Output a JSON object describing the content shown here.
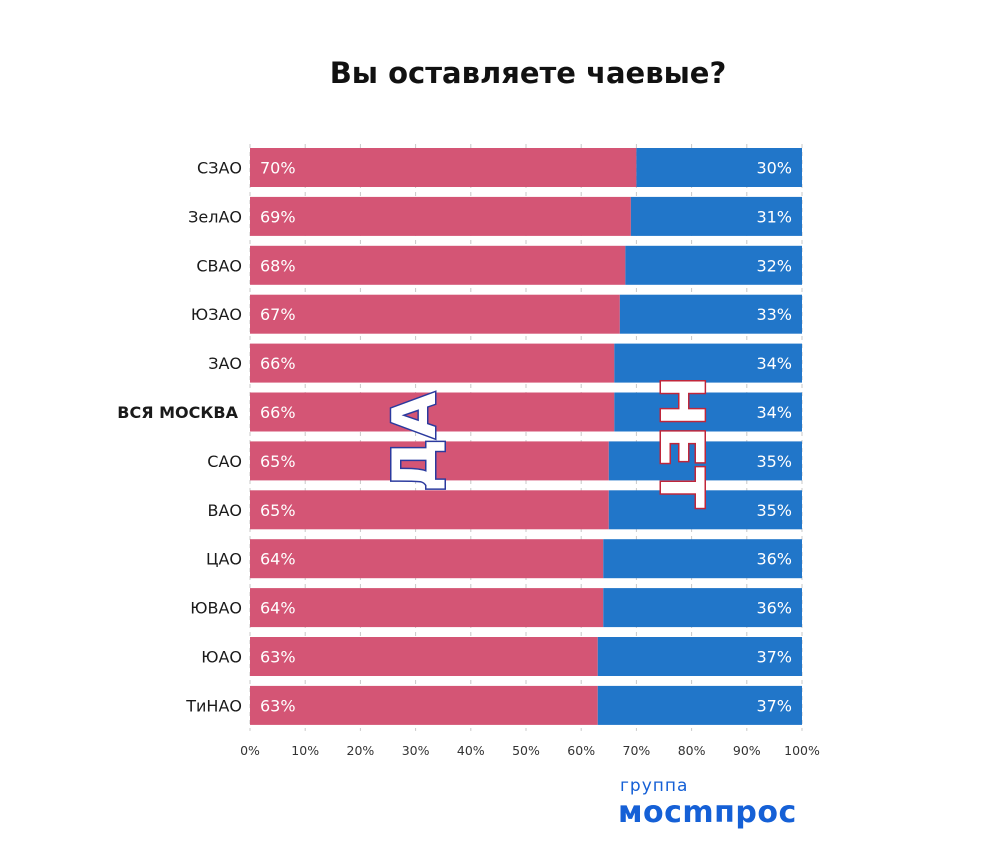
{
  "chart_data": {
    "type": "bar",
    "orientation": "horizontal",
    "stacked": true,
    "title": "Вы оставляете чаевые?",
    "categories": [
      "СЗАО",
      "ЗелАО",
      "СВАО",
      "ЮЗАО",
      "ЗАО",
      "ВСЯ МОСКВА",
      "САО",
      "ВАО",
      "ЦАО",
      "ЮВАО",
      "ЮАО",
      "ТиНАО"
    ],
    "highlight_category": "ВСЯ МОСКВА",
    "series": [
      {
        "name": "ДА",
        "color": "#d45575",
        "values": [
          70,
          69,
          68,
          67,
          66,
          66,
          65,
          65,
          64,
          64,
          63,
          63
        ]
      },
      {
        "name": "НЕТ",
        "color": "#2176c9",
        "values": [
          30,
          31,
          32,
          33,
          34,
          34,
          35,
          35,
          36,
          36,
          37,
          37
        ]
      }
    ],
    "value_suffix": "%",
    "xlim": [
      0,
      100
    ],
    "xticks": [
      "0%",
      "10%",
      "20%",
      "30%",
      "40%",
      "50%",
      "60%",
      "70%",
      "80%",
      "90%",
      "100%"
    ],
    "grid": true,
    "series_label_outline_colors": {
      "ДА": "#2b3a9e",
      "НЕТ": "#c0263a"
    }
  },
  "brand": {
    "line1": "группа",
    "line2": "мосmпрос"
  }
}
